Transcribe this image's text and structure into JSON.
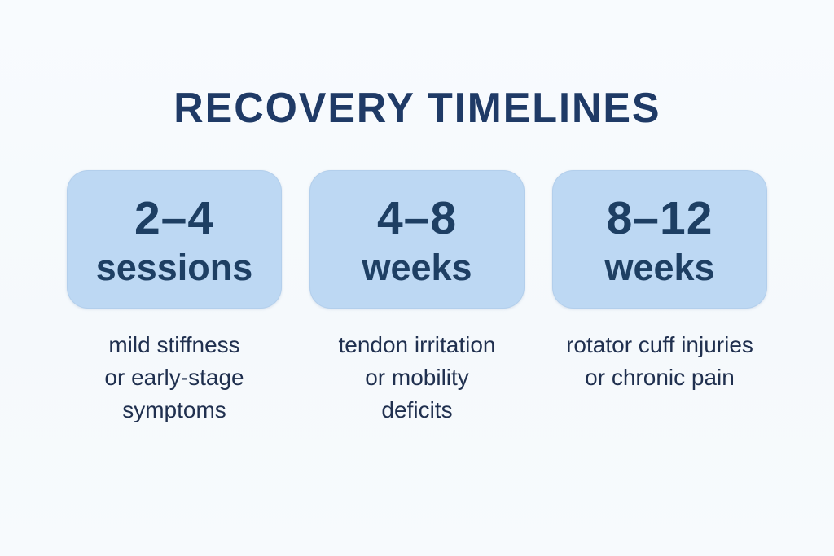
{
  "header": {
    "title": "RECOVERY TIMELINES"
  },
  "colors": {
    "background": "#f6fafd",
    "card": "#bdd8f3",
    "title_color": "#1f3a66",
    "card_text": "#1e3f63",
    "desc_text": "#20304f"
  },
  "cards": [
    {
      "range": "2–4",
      "unit": "sessions",
      "description": "mild stiffness\nor early-stage\nsymptoms"
    },
    {
      "range": "4–8",
      "unit": "weeks",
      "description": "tendon irritation\nor mobility\ndeficits"
    },
    {
      "range": "8–12",
      "unit": "weeks",
      "description": "rotator cuff injuries\nor chronic pain"
    }
  ]
}
